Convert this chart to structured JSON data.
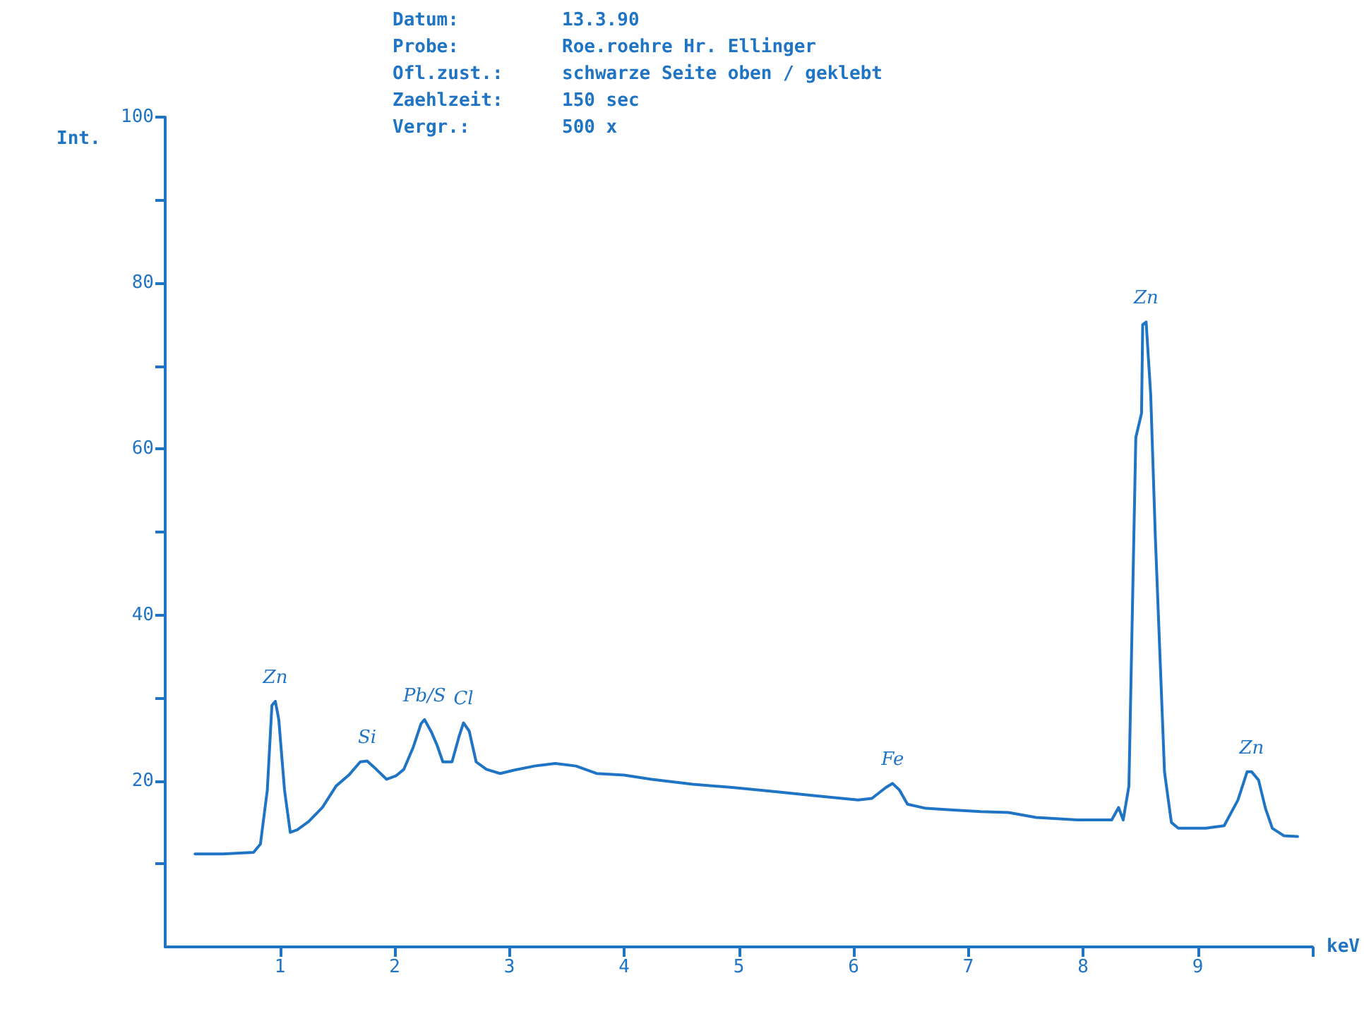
{
  "chart_data": {
    "type": "line",
    "xlabel": "keV",
    "ylabel": "Int.",
    "annotations": [
      "Datum:",
      "13.3.90",
      "Probe:",
      "Roe.roehre Hr. Ellinger",
      "Ofl.zust.:",
      "schwarze Seite oben / geklebt",
      "Zaehlzeit:",
      "150 sec",
      "Vergr.:",
      "500 x",
      {
        "text": "Zn",
        "x": 0.96,
        "y": 29.6
      },
      {
        "text": "Si",
        "x": 1.76,
        "y": 22.4
      },
      {
        "text": "Pb/S",
        "x": 2.26,
        "y": 27.4
      },
      {
        "text": "Cl",
        "x": 2.6,
        "y": 27.0
      },
      {
        "text": "Fe",
        "x": 6.34,
        "y": 19.7
      },
      {
        "text": "Zn",
        "x": 8.55,
        "y": 75.3
      },
      {
        "text": "Zn",
        "x": 9.47,
        "y": 21.1
      }
    ],
    "series": [
      {
        "color": "#1f74c4",
        "x": [
          0.26,
          0.5,
          0.77,
          0.83,
          0.89,
          0.93,
          0.96,
          0.99,
          1.04,
          1.09,
          1.15,
          1.25,
          1.37,
          1.49,
          1.6,
          1.7,
          1.76,
          1.84,
          1.93,
          2.01,
          2.08,
          2.16,
          2.23,
          2.26,
          2.32,
          2.37,
          2.42,
          2.5,
          2.56,
          2.6,
          2.65,
          2.71,
          2.8,
          2.92,
          3.04,
          3.22,
          3.4,
          3.58,
          3.76,
          4.0,
          4.24,
          4.6,
          4.96,
          5.32,
          5.68,
          6.04,
          6.16,
          6.28,
          6.34,
          6.4,
          6.47,
          6.63,
          6.87,
          7.11,
          7.35,
          7.59,
          7.95,
          8.25,
          8.31,
          8.35,
          8.4,
          8.46,
          8.51,
          8.52,
          8.55,
          8.59,
          8.63,
          8.71,
          8.77,
          8.83,
          9.07,
          9.23,
          9.35,
          9.43,
          9.47,
          9.53,
          9.59,
          9.65,
          9.75,
          9.87
        ],
        "values": [
          11.2,
          11.2,
          11.4,
          12.4,
          18.9,
          29.1,
          29.6,
          27.4,
          18.9,
          13.8,
          14.1,
          15.1,
          16.8,
          19.4,
          20.7,
          22.3,
          22.4,
          21.4,
          20.2,
          20.6,
          21.4,
          24.0,
          26.9,
          27.4,
          25.9,
          24.3,
          22.3,
          22.3,
          25.3,
          27.0,
          26.0,
          22.3,
          21.4,
          20.9,
          21.3,
          21.8,
          22.1,
          21.8,
          20.9,
          20.7,
          20.2,
          19.6,
          19.2,
          18.7,
          18.2,
          17.7,
          17.9,
          19.2,
          19.7,
          18.9,
          17.2,
          16.7,
          16.5,
          16.3,
          16.2,
          15.6,
          15.3,
          15.3,
          16.8,
          15.3,
          19.4,
          61.4,
          64.3,
          75.0,
          75.3,
          66.5,
          49.5,
          21.1,
          15.0,
          14.3,
          14.3,
          14.6,
          17.7,
          21.1,
          21.1,
          20.1,
          16.7,
          14.3,
          13.4,
          13.3
        ]
      }
    ],
    "xlim": [
      0,
      10
    ],
    "xticks": [
      1,
      2,
      3,
      4,
      5,
      6,
      7,
      8,
      9,
      {
        "value": 10,
        "label": null
      }
    ],
    "ylim": [
      0,
      100
    ],
    "yticks": [
      {
        "value": 10,
        "label": null
      },
      20,
      {
        "value": 30,
        "label": null
      },
      40,
      {
        "value": 50,
        "label": null
      },
      60,
      {
        "value": 70,
        "label": null
      },
      80,
      {
        "value": 90,
        "label": null
      },
      100
    ],
    "grid": false,
    "marker": "none",
    "line_style": "solid"
  }
}
